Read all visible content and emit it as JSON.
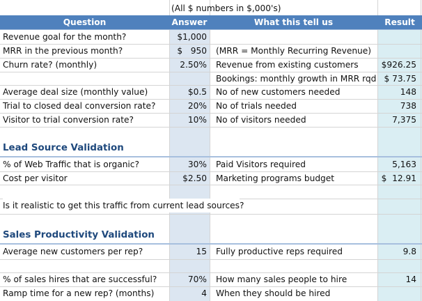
{
  "note": "(All $ numbers in $,000's)",
  "headers": {
    "question": "Question",
    "answer": "Answer",
    "what": "What this tell us",
    "result": "Result"
  },
  "rows": [
    {
      "question": "Revenue goal for the month?",
      "answer": "$1,000",
      "what": "",
      "result": ""
    },
    {
      "question": "MRR in the previous month?",
      "answer": "$   950",
      "what": "(MRR = Monthly Recurring Revenue)",
      "result": ""
    },
    {
      "question": "Churn rate? (monthly)",
      "answer": "2.50%",
      "what": "Revenue from existing customers",
      "result": "$926.25"
    },
    {
      "question": "",
      "answer": "",
      "what": "Bookings: monthly growth in MRR rqd",
      "result": "$ 73.75"
    },
    {
      "question": "Average deal size (monthly value)",
      "answer": "$0.5",
      "what": "No of new customers needed",
      "result": "148"
    },
    {
      "question": "Trial to closed deal conversion rate?",
      "answer": "20%",
      "what": "No of trials needed",
      "result": "738"
    },
    {
      "question": "Visitor to trial conversion rate?",
      "answer": "10%",
      "what": "No of visitors needed",
      "result": "7,375"
    }
  ],
  "lead": {
    "title": "Lead Source Validation",
    "rows": [
      {
        "question": "% of Web Traffic that is organic?",
        "answer": "30%",
        "what": "Paid Visitors required",
        "result": "5,163"
      },
      {
        "question": "Cost per visitor",
        "answer": "$2.50",
        "what": "Marketing programs budget",
        "result": "$  12.91"
      }
    ],
    "realistic": "Is it realistic to get this traffic from current lead sources?"
  },
  "sales": {
    "title": "Sales Productivity Validation",
    "rows": [
      {
        "question": "Average new customers per rep?",
        "answer": "15",
        "what": "Fully productive reps required",
        "result": "9.8"
      },
      {
        "question": "% of sales hires that are successful?",
        "answer": "70%",
        "what": "How many sales people to hire",
        "result": "14"
      },
      {
        "question": "Ramp time for a new rep? (months)",
        "answer": "4",
        "what": "When they should be hired",
        "result": ""
      }
    ]
  },
  "colors": {
    "header_bg": "#4f81bd",
    "answer_column_bg": "#dce6f1",
    "result_column_bg": "#daeef3",
    "section_title": "#1f497d"
  }
}
